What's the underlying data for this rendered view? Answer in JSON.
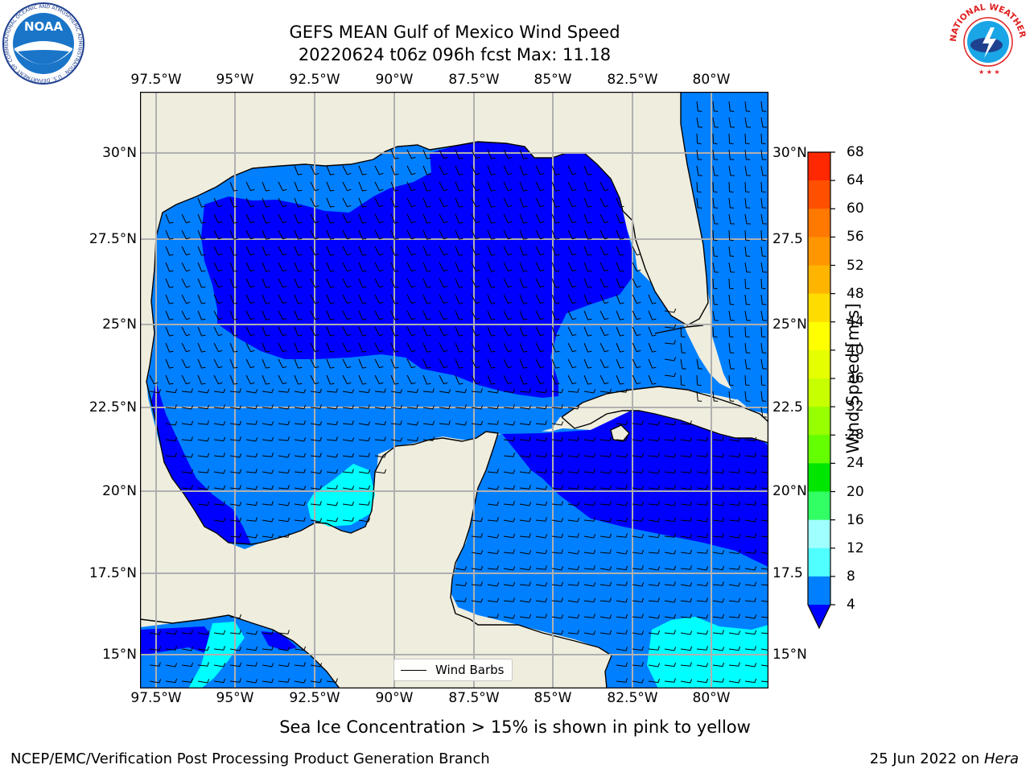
{
  "title": {
    "line1": "GEFS MEAN Gulf of Mexico Wind Speed",
    "line2": "20220624 t06z 096h fcst   Max: 11.18"
  },
  "map": {
    "lon_labels": [
      "97.5°W",
      "95°W",
      "92.5°W",
      "90°W",
      "87.5°W",
      "85°W",
      "82.5°W",
      "80°W"
    ],
    "lat_labels_left": [
      "30°N",
      "27.5°N",
      "25°N",
      "22.5°N",
      "20°N",
      "17.5°N",
      "15°N"
    ],
    "lat_labels_right": [
      "30°N",
      "27.5",
      "25°N",
      "22.5",
      "20°N",
      "17.5",
      "15°N"
    ],
    "land_color": "#efedde",
    "ocean_color_4_8": "#0080ff",
    "ocean_color_0_4": "#0000ff",
    "ocean_color_8_12": "#00ffff",
    "barb_color": "#000000"
  },
  "legend": {
    "label": "Wind Barbs"
  },
  "colorbar": {
    "label": "Wind Speed [m/s]",
    "ticks": [
      "68",
      "64",
      "60",
      "56",
      "52",
      "48",
      "44",
      "40",
      "36",
      "32",
      "28",
      "24",
      "20",
      "16",
      "12",
      "8",
      "4"
    ],
    "colors": [
      "#ff0000",
      "#ff2800",
      "#ff5000",
      "#ff7800",
      "#ff9600",
      "#ffb400",
      "#ffdc00",
      "#ffff00",
      "#e6ff00",
      "#c8ff00",
      "#96ff00",
      "#64ff00",
      "#00e600",
      "#32ff64",
      "#a0ffff",
      "#50ffff",
      "#00ffff",
      "#0080ff"
    ],
    "extend_color": "#0000ff"
  },
  "caption": "Sea Ice Concentration > 15% is shown in pink to yellow",
  "footer": {
    "left": "NCEP/EMC/Verification Post Processing Product Generation Branch",
    "right_date": "25 Jun 2022 on ",
    "right_machine": "Hera"
  },
  "logos": {
    "noaa": {
      "text": "NOAA",
      "ring": "NATIONAL OCEANIC AND ATMOSPHERIC ADMINISTRATION · U.S. DEPARTMENT OF COMMERCE ·"
    },
    "nws": {
      "ring": "NATIONAL WEATHER SERVICE"
    }
  }
}
